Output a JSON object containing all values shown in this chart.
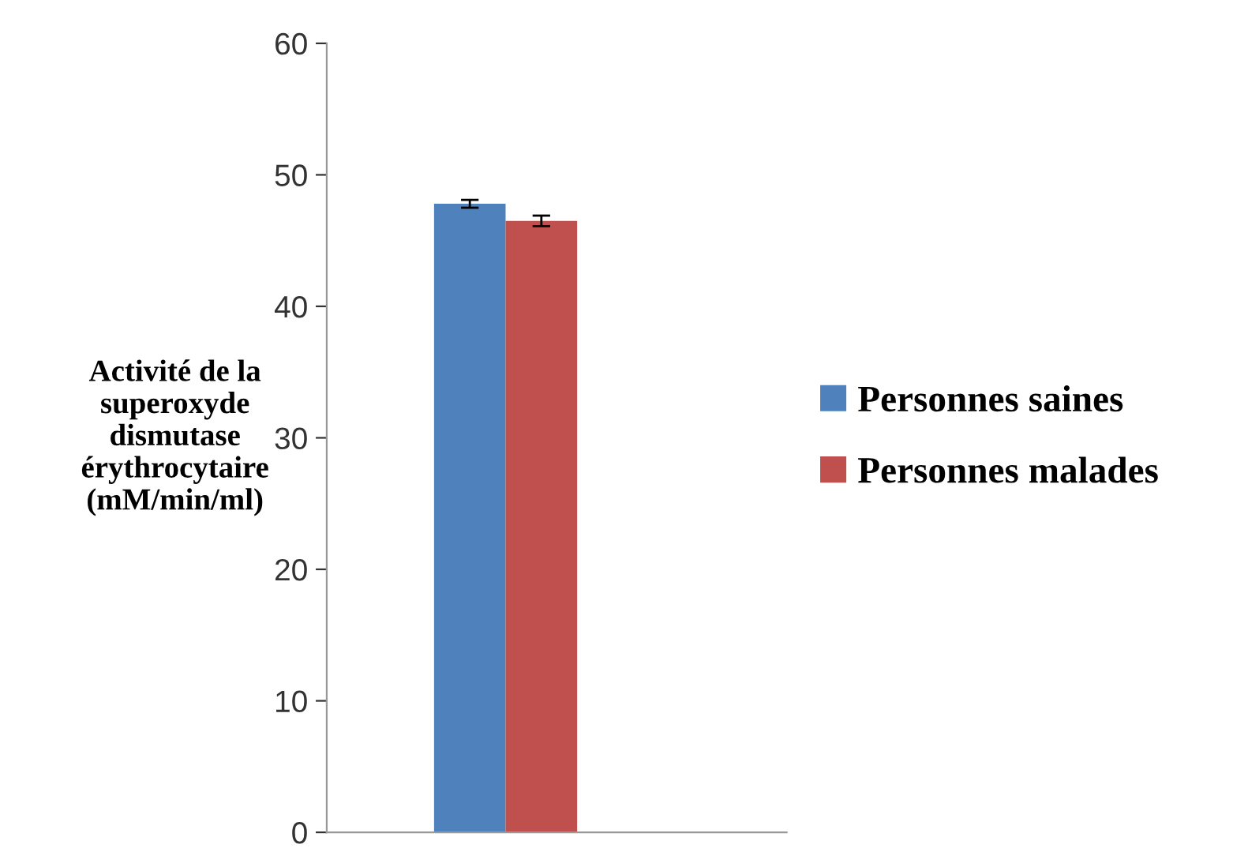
{
  "chart_data": {
    "type": "bar",
    "ylabel": "Activité de la\nsuperoxyde\ndismutase\nérythrocytaire\n(mM/min/ml)",
    "categories": [
      null
    ],
    "series": [
      {
        "name": "Personnes saines",
        "color": "#4f81bd",
        "values": [
          47.8
        ],
        "errors": [
          0.3
        ]
      },
      {
        "name": "Personnes malades",
        "color": "#c0504d",
        "values": [
          46.5
        ],
        "errors": [
          0.4
        ]
      }
    ],
    "ylim": [
      0,
      60
    ],
    "yticks": [
      0,
      10,
      20,
      30,
      40,
      50,
      60
    ],
    "grid": false,
    "legend": "right"
  }
}
